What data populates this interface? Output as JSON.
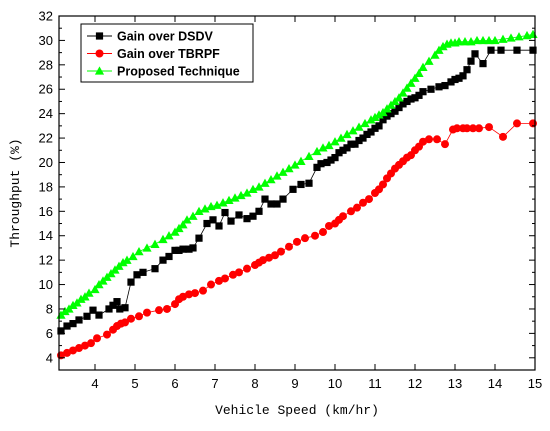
{
  "chart_data": {
    "type": "line",
    "xlabel": "Vehicle Speed (km/hr)",
    "ylabel": "Throughput (%)",
    "xlim": [
      3.1,
      15
    ],
    "ylim": [
      3,
      32
    ],
    "x_ticks": [
      4,
      5,
      6,
      7,
      8,
      9,
      10,
      11,
      12,
      13,
      14,
      15
    ],
    "y_ticks": [
      4,
      6,
      8,
      10,
      12,
      14,
      16,
      18,
      20,
      22,
      24,
      26,
      28,
      30,
      32
    ],
    "grid": false,
    "legend_position": "top-left",
    "series": [
      {
        "name": "Gain over DSDV",
        "color": "#000000",
        "marker": "square",
        "x": [
          3.15,
          3.3,
          3.45,
          3.6,
          3.8,
          3.95,
          4.1,
          4.35,
          4.45,
          4.55,
          4.62,
          4.75,
          4.9,
          5.05,
          5.2,
          5.5,
          5.7,
          5.85,
          6.0,
          6.1,
          6.2,
          6.35,
          6.45,
          6.6,
          6.8,
          6.95,
          7.1,
          7.25,
          7.4,
          7.6,
          7.8,
          7.95,
          8.1,
          8.25,
          8.4,
          8.55,
          8.7,
          8.95,
          9.15,
          9.35,
          9.55,
          9.65,
          9.8,
          9.9,
          10.0,
          10.1,
          10.2,
          10.3,
          10.4,
          10.5,
          10.6,
          10.7,
          10.8,
          10.9,
          11.0,
          11.1,
          11.2,
          11.3,
          11.4,
          11.5,
          11.6,
          11.7,
          11.8,
          11.9,
          12.0,
          12.1,
          12.2,
          12.4,
          12.6,
          12.75,
          12.9,
          13.0,
          13.1,
          13.2,
          13.3,
          13.4,
          13.5,
          13.7,
          13.9,
          14.15,
          14.55,
          14.95
        ],
        "values": [
          6.2,
          6.6,
          6.8,
          7.1,
          7.4,
          7.9,
          7.5,
          8.0,
          8.3,
          8.6,
          8.0,
          8.1,
          10.2,
          10.8,
          11.0,
          11.3,
          12.0,
          12.3,
          12.8,
          12.8,
          12.9,
          12.9,
          13.0,
          13.8,
          15.0,
          15.3,
          14.8,
          15.9,
          15.2,
          15.7,
          15.4,
          15.6,
          16.0,
          17.0,
          16.6,
          16.6,
          17.0,
          17.8,
          18.2,
          18.3,
          19.6,
          19.9,
          20.0,
          20.2,
          20.4,
          20.8,
          21.0,
          21.2,
          21.5,
          21.5,
          21.8,
          22.0,
          22.3,
          22.5,
          22.8,
          23.0,
          23.5,
          23.8,
          24.0,
          24.2,
          24.5,
          24.8,
          25.0,
          25.2,
          25.3,
          25.5,
          25.8,
          26.0,
          26.2,
          26.3,
          26.6,
          26.8,
          26.9,
          27.1,
          27.6,
          28.3,
          28.9,
          28.1,
          29.2,
          29.2,
          29.2,
          29.2
        ]
      },
      {
        "name": "Gain over TBRPF",
        "color": "#ff0000",
        "marker": "circle",
        "x": [
          3.15,
          3.3,
          3.45,
          3.6,
          3.75,
          3.9,
          4.05,
          4.3,
          4.45,
          4.55,
          4.65,
          4.75,
          4.9,
          5.1,
          5.3,
          5.6,
          5.8,
          6.0,
          6.1,
          6.2,
          6.35,
          6.5,
          6.7,
          6.9,
          7.1,
          7.25,
          7.45,
          7.6,
          7.8,
          8.0,
          8.1,
          8.2,
          8.35,
          8.5,
          8.65,
          8.85,
          9.05,
          9.25,
          9.5,
          9.7,
          9.85,
          10.0,
          10.1,
          10.2,
          10.4,
          10.55,
          10.7,
          10.85,
          11.0,
          11.1,
          11.2,
          11.3,
          11.4,
          11.5,
          11.6,
          11.7,
          11.8,
          11.9,
          12.0,
          12.1,
          12.2,
          12.35,
          12.55,
          12.75,
          12.95,
          13.05,
          13.2,
          13.3,
          13.45,
          13.6,
          13.85,
          14.2,
          14.55,
          14.95
        ],
        "values": [
          4.2,
          4.4,
          4.6,
          4.8,
          5.0,
          5.2,
          5.6,
          5.9,
          6.3,
          6.6,
          6.8,
          6.9,
          7.2,
          7.4,
          7.7,
          7.9,
          8.0,
          8.4,
          8.8,
          9.0,
          9.2,
          9.3,
          9.5,
          10.0,
          10.3,
          10.5,
          10.8,
          11.0,
          11.3,
          11.6,
          11.8,
          12.0,
          12.2,
          12.4,
          12.7,
          13.1,
          13.5,
          13.8,
          14.0,
          14.3,
          14.8,
          15.0,
          15.3,
          15.6,
          16.0,
          16.3,
          16.7,
          17.0,
          17.5,
          17.8,
          18.2,
          18.7,
          19.1,
          19.5,
          19.8,
          20.1,
          20.4,
          20.6,
          21.0,
          21.3,
          21.7,
          21.9,
          21.9,
          21.5,
          22.7,
          22.8,
          22.8,
          22.8,
          22.8,
          22.8,
          22.9,
          22.1,
          23.2,
          23.2
        ]
      },
      {
        "name": "Proposed Technique",
        "color": "#00ff00",
        "marker": "triangle",
        "x": [
          3.15,
          3.25,
          3.35,
          3.45,
          3.55,
          3.65,
          3.75,
          3.85,
          4.0,
          4.1,
          4.2,
          4.3,
          4.4,
          4.5,
          4.6,
          4.7,
          4.8,
          4.95,
          5.1,
          5.3,
          5.5,
          5.7,
          5.85,
          6.0,
          6.1,
          6.2,
          6.3,
          6.45,
          6.6,
          6.75,
          6.9,
          7.05,
          7.2,
          7.35,
          7.5,
          7.65,
          7.8,
          7.95,
          8.1,
          8.25,
          8.4,
          8.55,
          8.7,
          8.85,
          9.0,
          9.15,
          9.35,
          9.55,
          9.7,
          9.85,
          10.0,
          10.15,
          10.3,
          10.45,
          10.6,
          10.75,
          10.9,
          11.0,
          11.1,
          11.2,
          11.3,
          11.4,
          11.5,
          11.6,
          11.7,
          11.8,
          11.9,
          12.0,
          12.1,
          12.2,
          12.35,
          12.5,
          12.6,
          12.7,
          12.8,
          12.9,
          13.0,
          13.1,
          13.25,
          13.4,
          13.55,
          13.7,
          13.85,
          14.0,
          14.2,
          14.4,
          14.6,
          14.8,
          14.95
        ],
        "values": [
          7.5,
          7.8,
          8.0,
          8.3,
          8.5,
          8.8,
          9.0,
          9.3,
          9.6,
          10.0,
          10.3,
          10.6,
          10.9,
          11.2,
          11.5,
          11.8,
          12.0,
          12.3,
          12.7,
          13.0,
          13.3,
          13.7,
          14.0,
          14.3,
          14.6,
          14.9,
          15.3,
          15.6,
          16.0,
          16.2,
          16.4,
          16.5,
          16.7,
          16.9,
          17.1,
          17.3,
          17.5,
          17.8,
          18.0,
          18.3,
          18.6,
          18.9,
          19.2,
          19.5,
          19.8,
          20.1,
          20.5,
          20.9,
          21.2,
          21.4,
          21.7,
          22.0,
          22.3,
          22.6,
          22.9,
          23.2,
          23.5,
          23.7,
          23.9,
          24.1,
          24.4,
          24.7,
          25.0,
          25.3,
          25.7,
          26.1,
          26.5,
          26.9,
          27.3,
          27.8,
          28.3,
          28.8,
          29.2,
          29.5,
          29.7,
          29.8,
          29.8,
          29.9,
          29.9,
          29.9,
          30.0,
          30.0,
          30.0,
          30.0,
          30.1,
          30.2,
          30.3,
          30.4,
          30.5
        ]
      }
    ]
  }
}
